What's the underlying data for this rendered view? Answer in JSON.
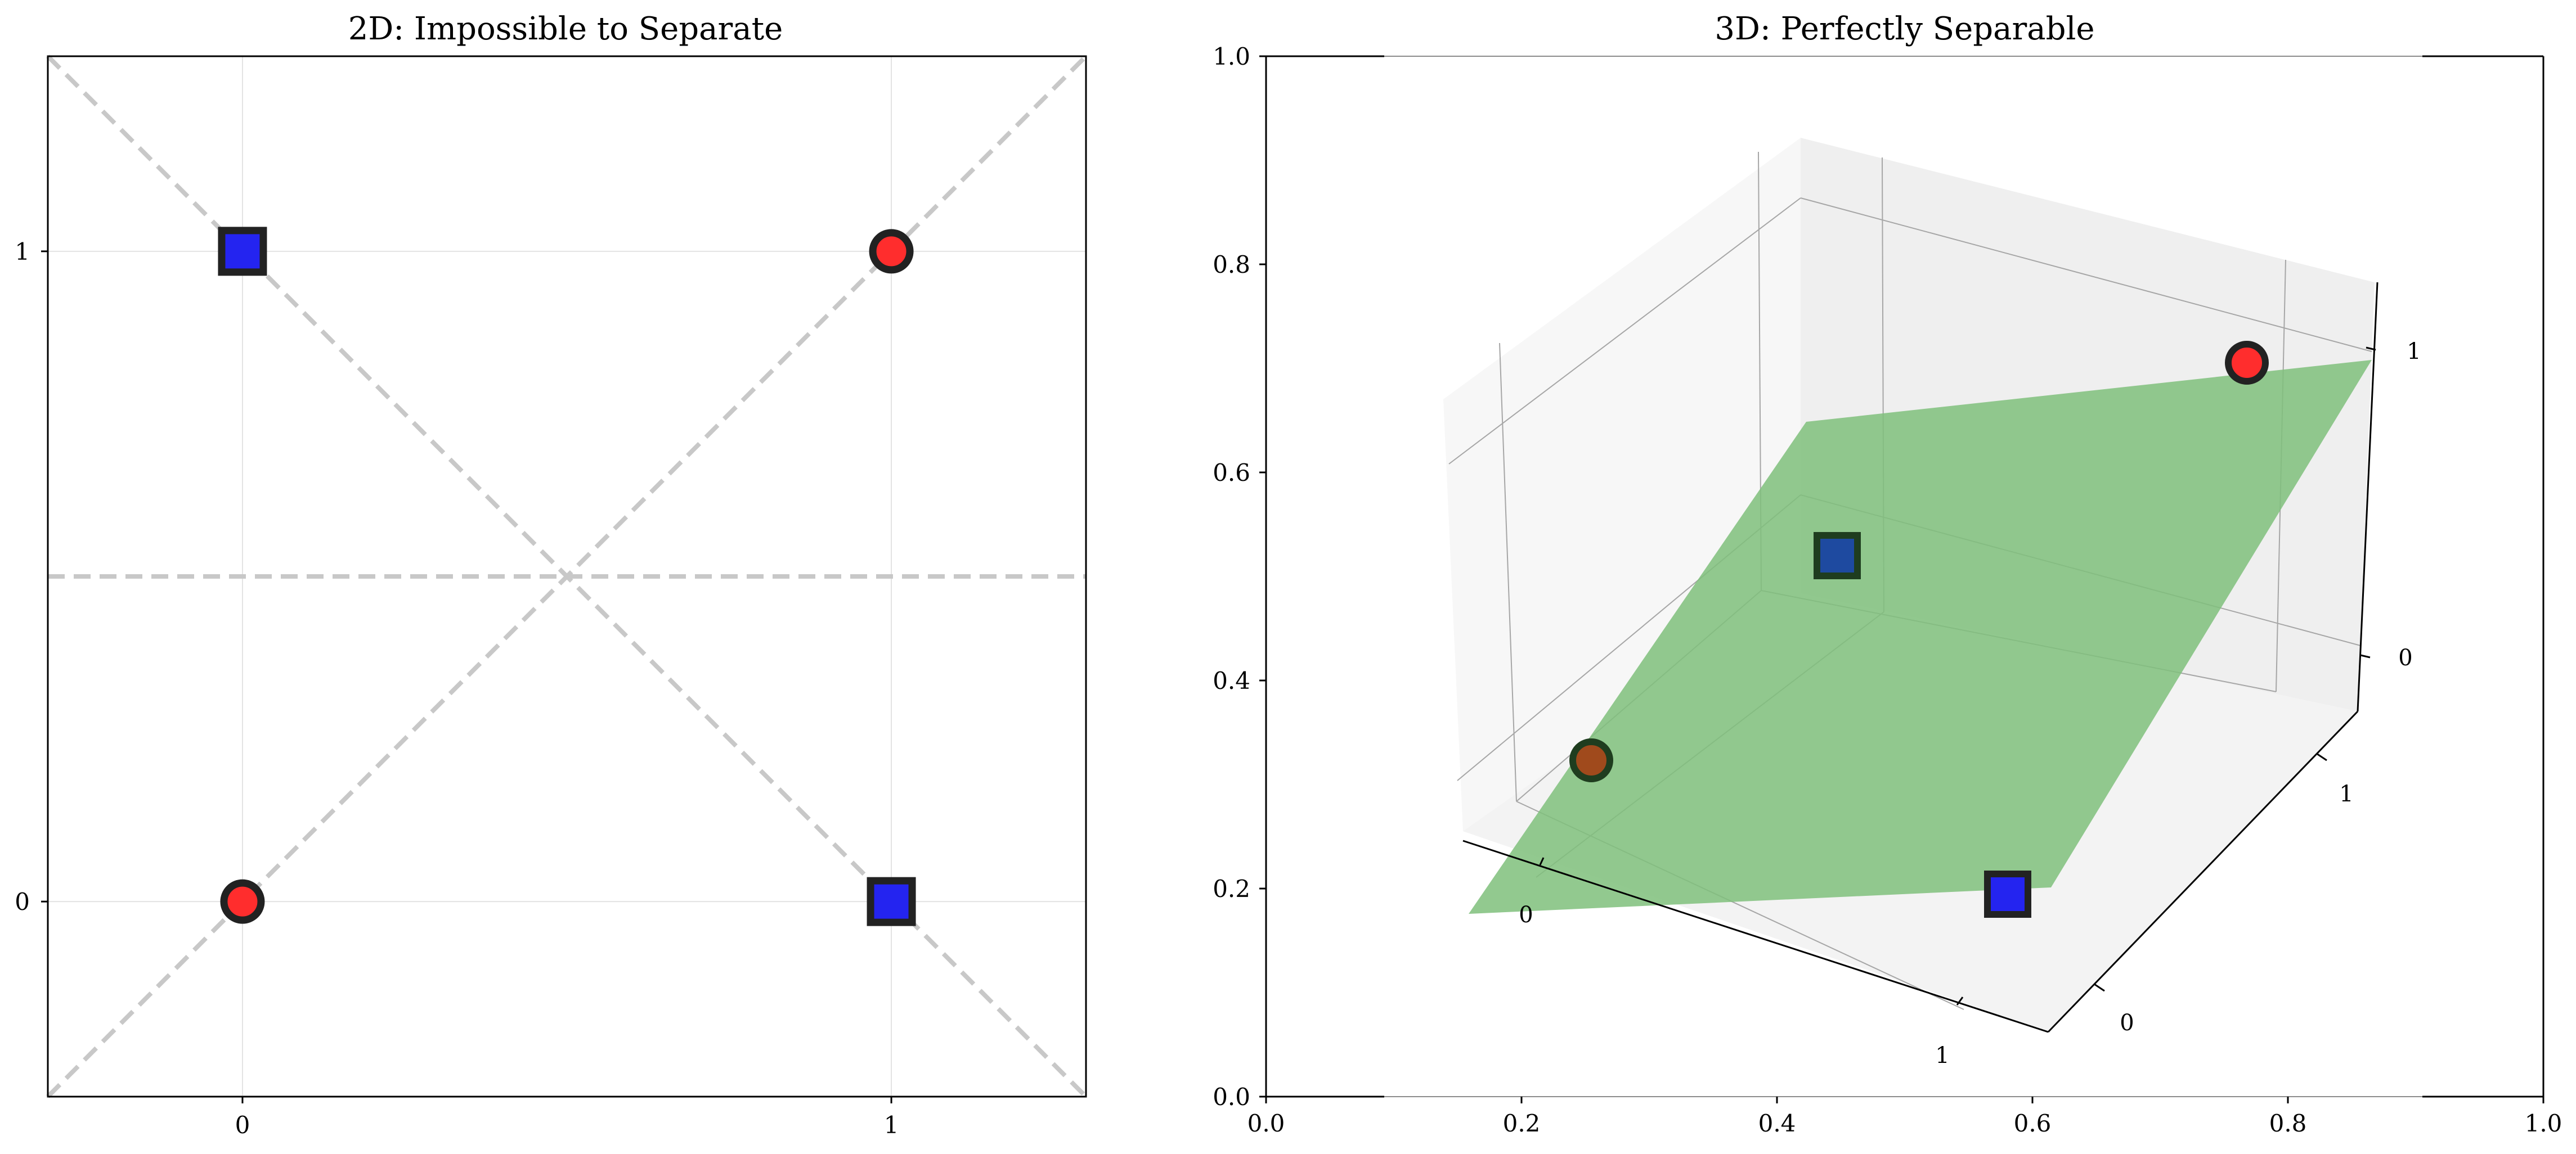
{
  "chart_data": [
    {
      "type": "scatter",
      "title": "2D: Impossible to Separate",
      "xlabel": "",
      "ylabel": "",
      "xlim": [
        -0.3,
        1.3
      ],
      "ylim": [
        -0.3,
        1.3
      ],
      "x_ticks": [
        "0",
        "1"
      ],
      "y_ticks": [
        "0",
        "1"
      ],
      "grid": true,
      "series": [
        {
          "marker": "circle",
          "color": "#ff2d2d",
          "points": [
            {
              "x": 0,
              "y": 0
            },
            {
              "x": 1,
              "y": 1
            }
          ]
        },
        {
          "marker": "square",
          "color": "#2424f0",
          "points": [
            {
              "x": 0,
              "y": 1
            },
            {
              "x": 1,
              "y": 0
            }
          ]
        }
      ],
      "reference_lines": [
        {
          "style": "dashed",
          "color": "#c8c8c8",
          "from": [
            -0.3,
            -0.3
          ],
          "to": [
            1.3,
            1.3
          ]
        },
        {
          "style": "dashed",
          "color": "#c8c8c8",
          "from": [
            -0.3,
            1.3
          ],
          "to": [
            1.3,
            -0.3
          ]
        },
        {
          "style": "dashed",
          "color": "#c8c8c8",
          "from": [
            -0.3,
            0.5
          ],
          "to": [
            1.3,
            0.5
          ]
        }
      ]
    },
    {
      "type": "scatter3d",
      "title": "3D: Perfectly Separable",
      "frame_x_ticks": [
        "0.0",
        "0.2",
        "0.4",
        "0.6",
        "0.8",
        "1.0"
      ],
      "frame_y_ticks": [
        "0.0",
        "0.2",
        "0.4",
        "0.6",
        "0.8",
        "1.0"
      ],
      "x_ticks": [
        "0",
        "1"
      ],
      "y_ticks": [
        "0",
        "1"
      ],
      "z_ticks": [
        "0",
        "1"
      ],
      "plane_color": "#7fbf7b",
      "series": [
        {
          "marker": "circle",
          "color": "#ff2d2d",
          "points": [
            {
              "x": 0,
              "y": 0,
              "z": 0
            },
            {
              "x": 1,
              "y": 1,
              "z": 1
            }
          ]
        },
        {
          "marker": "square",
          "color": "#2424f0",
          "points": [
            {
              "x": 0,
              "y": 1,
              "z": 0
            },
            {
              "x": 1,
              "y": 0,
              "z": 0
            }
          ]
        }
      ]
    }
  ]
}
